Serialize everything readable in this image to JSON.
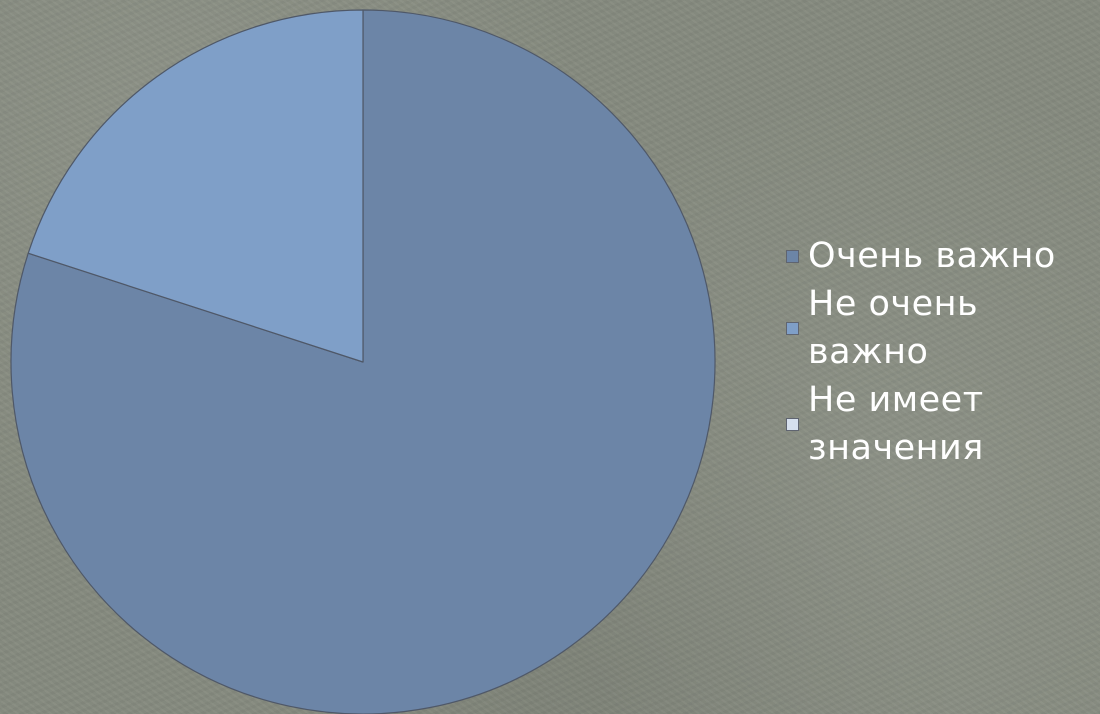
{
  "chart_data": {
    "type": "pie",
    "title": "",
    "categories": [
      "Очень важно",
      "Не очень важно",
      "Не имеет значения"
    ],
    "values": [
      80,
      20,
      0
    ],
    "colors": [
      "#6c85a7",
      "#7f9fc8",
      "#d6e0ee"
    ],
    "start_angle_deg": 0,
    "direction": "clockwise",
    "legend": "right"
  }
}
